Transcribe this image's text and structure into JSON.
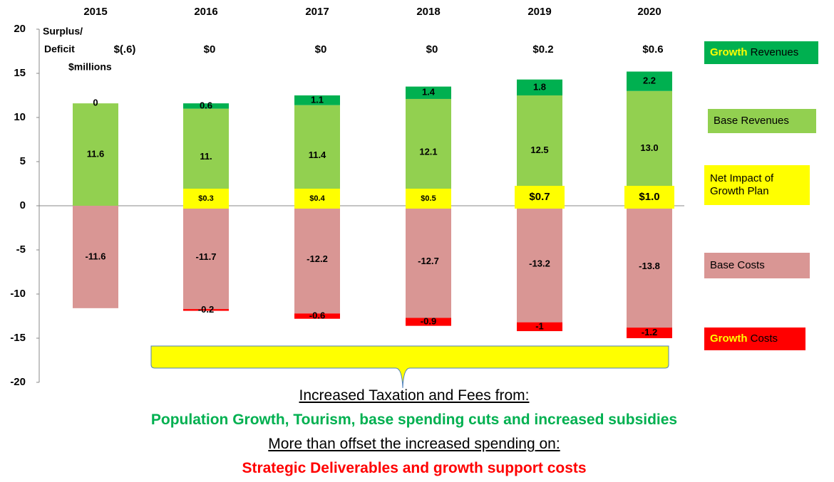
{
  "chart_data": {
    "type": "bar",
    "stacked": true,
    "categories": [
      "2015",
      "2016",
      "2017",
      "2018",
      "2019",
      "2020"
    ],
    "series": [
      {
        "name": "Base Revenues",
        "color": "#92d050",
        "values": [
          11.6,
          11,
          11.4,
          12.1,
          12.5,
          13.0
        ],
        "value_labels": [
          "11.6",
          "11.",
          "11.4",
          "12.1",
          "12.5",
          "13.0"
        ]
      },
      {
        "name": "Growth Revenues",
        "color": "#00b050",
        "values": [
          0,
          0.6,
          1.1,
          1.4,
          1.8,
          2.2
        ]
      },
      {
        "name": "Base Costs",
        "color": "#d99694",
        "values": [
          -11.6,
          -11.7,
          -12.2,
          -12.7,
          -13.2,
          -13.8
        ]
      },
      {
        "name": "Growth Costs",
        "color": "#ff0000",
        "values": [
          null,
          -0.2,
          -0.6,
          -0.9,
          -1,
          -1.2
        ]
      }
    ],
    "net_impact": {
      "name": "Net Impact of Growth Plan",
      "color": "#ffff00",
      "values": [
        null,
        0.3,
        0.4,
        0.5,
        0.7,
        1.0
      ],
      "value_labels": [
        null,
        "$0.3",
        "$0.4",
        "$0.5",
        "$0.7",
        "$1.0"
      ]
    },
    "surplus_label": [
      "Surplus/",
      "Deficit"
    ],
    "unit_label": "$millions",
    "surplus": {
      "values": [
        -0.6,
        0,
        0,
        0,
        0.2,
        0.6
      ],
      "value_labels": [
        "$(.6)",
        "$0",
        "$0",
        "$0",
        "$0.2",
        "$0.6"
      ]
    },
    "ylim": [
      -20,
      20
    ],
    "yticks": [
      -20,
      -15,
      -10,
      -5,
      0,
      5,
      10,
      15,
      20
    ],
    "grid": false,
    "annotations": [
      "Increased Taxation and Fees from:",
      "Population Growth, Tourism, base spending cuts and increased subsidies",
      "More than offset the increased spending  on:",
      "Strategic Deliverables and growth support costs"
    ]
  }
}
